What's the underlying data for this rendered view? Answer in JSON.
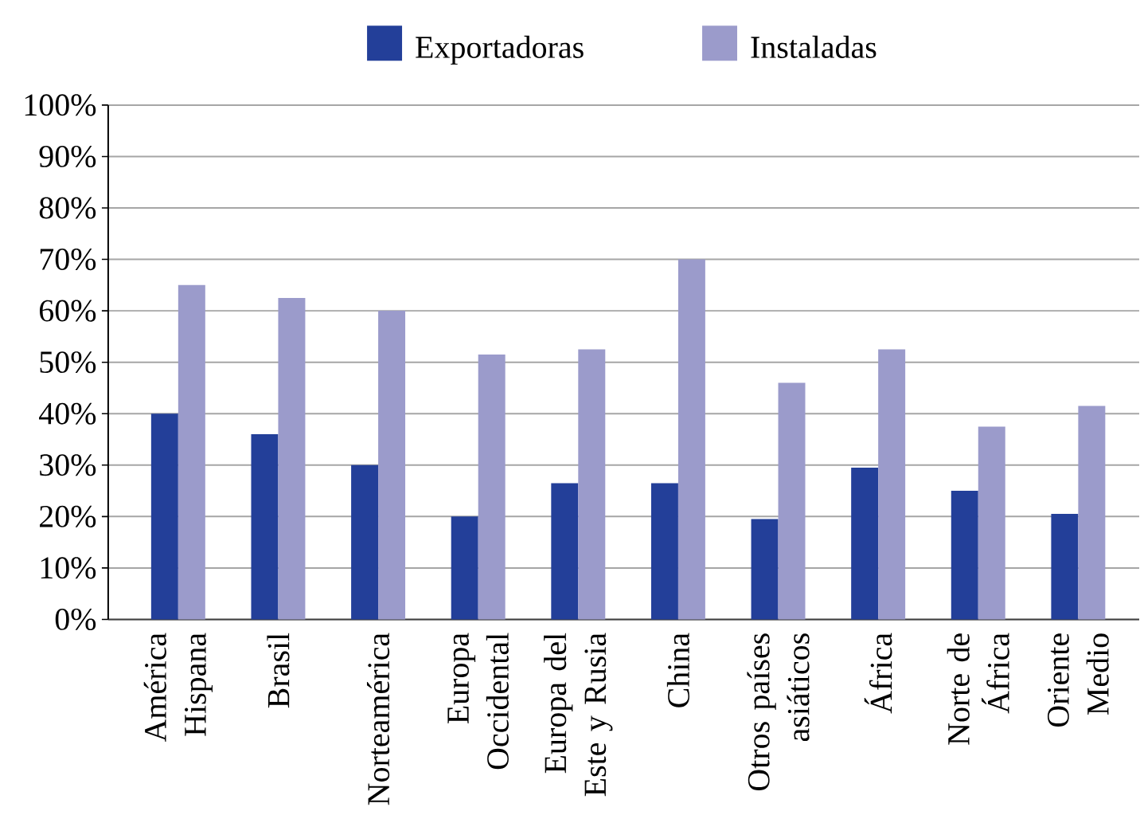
{
  "chart_data": {
    "type": "bar",
    "categories": [
      "América Hispana",
      "Brasil",
      "Norteamérica",
      "Europa Occidental",
      "Europa del Este y Rusia",
      "China",
      "Otros países asiáticos",
      "África",
      "Norte de África",
      "Oriente Medio"
    ],
    "series": [
      {
        "name": "Exportadoras",
        "color": "#233f99",
        "values": [
          40,
          36,
          30,
          20,
          26.5,
          26.5,
          19.5,
          29.5,
          25,
          20.5
        ]
      },
      {
        "name": "Instaladas",
        "color": "#9b9bcb",
        "values": [
          65,
          62.5,
          60,
          51.5,
          52.5,
          70,
          46,
          52.5,
          37.5,
          41.5
        ]
      }
    ],
    "ylim": [
      0,
      100
    ],
    "yticks": [
      {
        "value": 0,
        "label": "0%"
      },
      {
        "value": 10,
        "label": "10%"
      },
      {
        "value": 20,
        "label": "20%"
      },
      {
        "value": 30,
        "label": "30%"
      },
      {
        "value": 40,
        "label": "40%"
      },
      {
        "value": 50,
        "label": "50%"
      },
      {
        "value": 60,
        "label": "60%"
      },
      {
        "value": 70,
        "label": "70%"
      },
      {
        "value": 80,
        "label": "80%"
      },
      {
        "value": 90,
        "label": "90%"
      },
      {
        "value": 100,
        "label": "100%"
      }
    ],
    "grid": "y",
    "legend": "top"
  }
}
